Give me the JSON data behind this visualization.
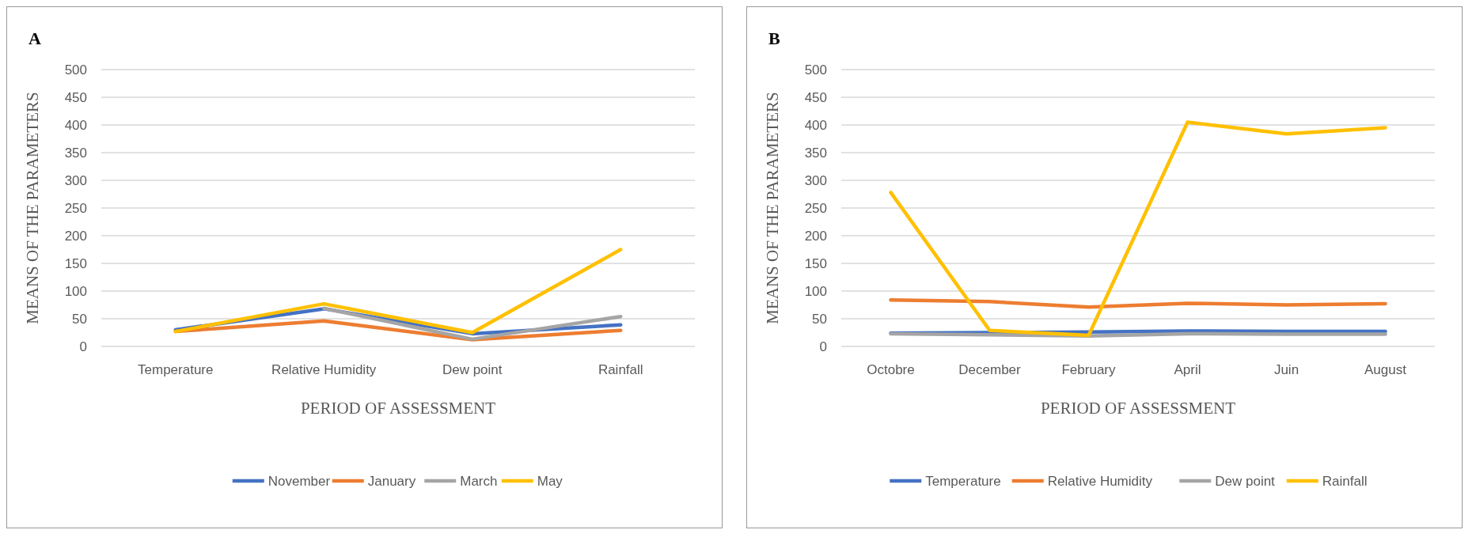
{
  "chart_data": [
    {
      "type": "line",
      "title": "A",
      "xlabel": "PERIOD OF ASSESSMENT",
      "ylabel": "MEANS OF THE PARAMETERS",
      "categories": [
        "Temperature",
        "Relative Humidity",
        "Dew point",
        "Rainfall"
      ],
      "series": [
        {
          "name": "November",
          "color": "#4472c4",
          "values": [
            30,
            68,
            23,
            39
          ]
        },
        {
          "name": "January",
          "color": "#ed7d31",
          "values": [
            27,
            46,
            12,
            29
          ]
        },
        {
          "name": "March",
          "color": "#a5a5a5",
          "values": [
            null,
            69,
            13,
            54
          ]
        },
        {
          "name": "May",
          "color": "#ffc000",
          "values": [
            27,
            77,
            25,
            175
          ]
        }
      ],
      "ylim": [
        0,
        500
      ],
      "yticks": [
        0,
        50,
        100,
        150,
        200,
        250,
        300,
        350,
        400,
        450,
        500
      ],
      "grid": "y",
      "legend": "bottom",
      "marker": "none",
      "line_style": "solid"
    },
    {
      "type": "line",
      "title": "B",
      "xlabel": "PERIOD OF ASSESSMENT",
      "ylabel": "MEANS OF THE PARAMETERS",
      "categories": [
        "Octobre",
        "December",
        "February",
        "April",
        "Juin",
        "August"
      ],
      "series": [
        {
          "name": "Temperature",
          "color": "#4472c4",
          "values": [
            24,
            25,
            26,
            28,
            27,
            27
          ]
        },
        {
          "name": "Relative Humidity",
          "color": "#ed7d31",
          "values": [
            84,
            81,
            71,
            78,
            75,
            77
          ]
        },
        {
          "name": "Dew point",
          "color": "#a5a5a5",
          "values": [
            23,
            21,
            19,
            23,
            22,
            22
          ]
        },
        {
          "name": "Rainfall",
          "color": "#ffc000",
          "values": [
            278,
            29,
            20,
            405,
            384,
            395
          ]
        }
      ],
      "ylim": [
        0,
        500
      ],
      "yticks": [
        0,
        50,
        100,
        150,
        200,
        250,
        300,
        350,
        400,
        450,
        500
      ],
      "grid": "y",
      "legend": "bottom",
      "marker": "none",
      "line_style": "solid"
    }
  ]
}
